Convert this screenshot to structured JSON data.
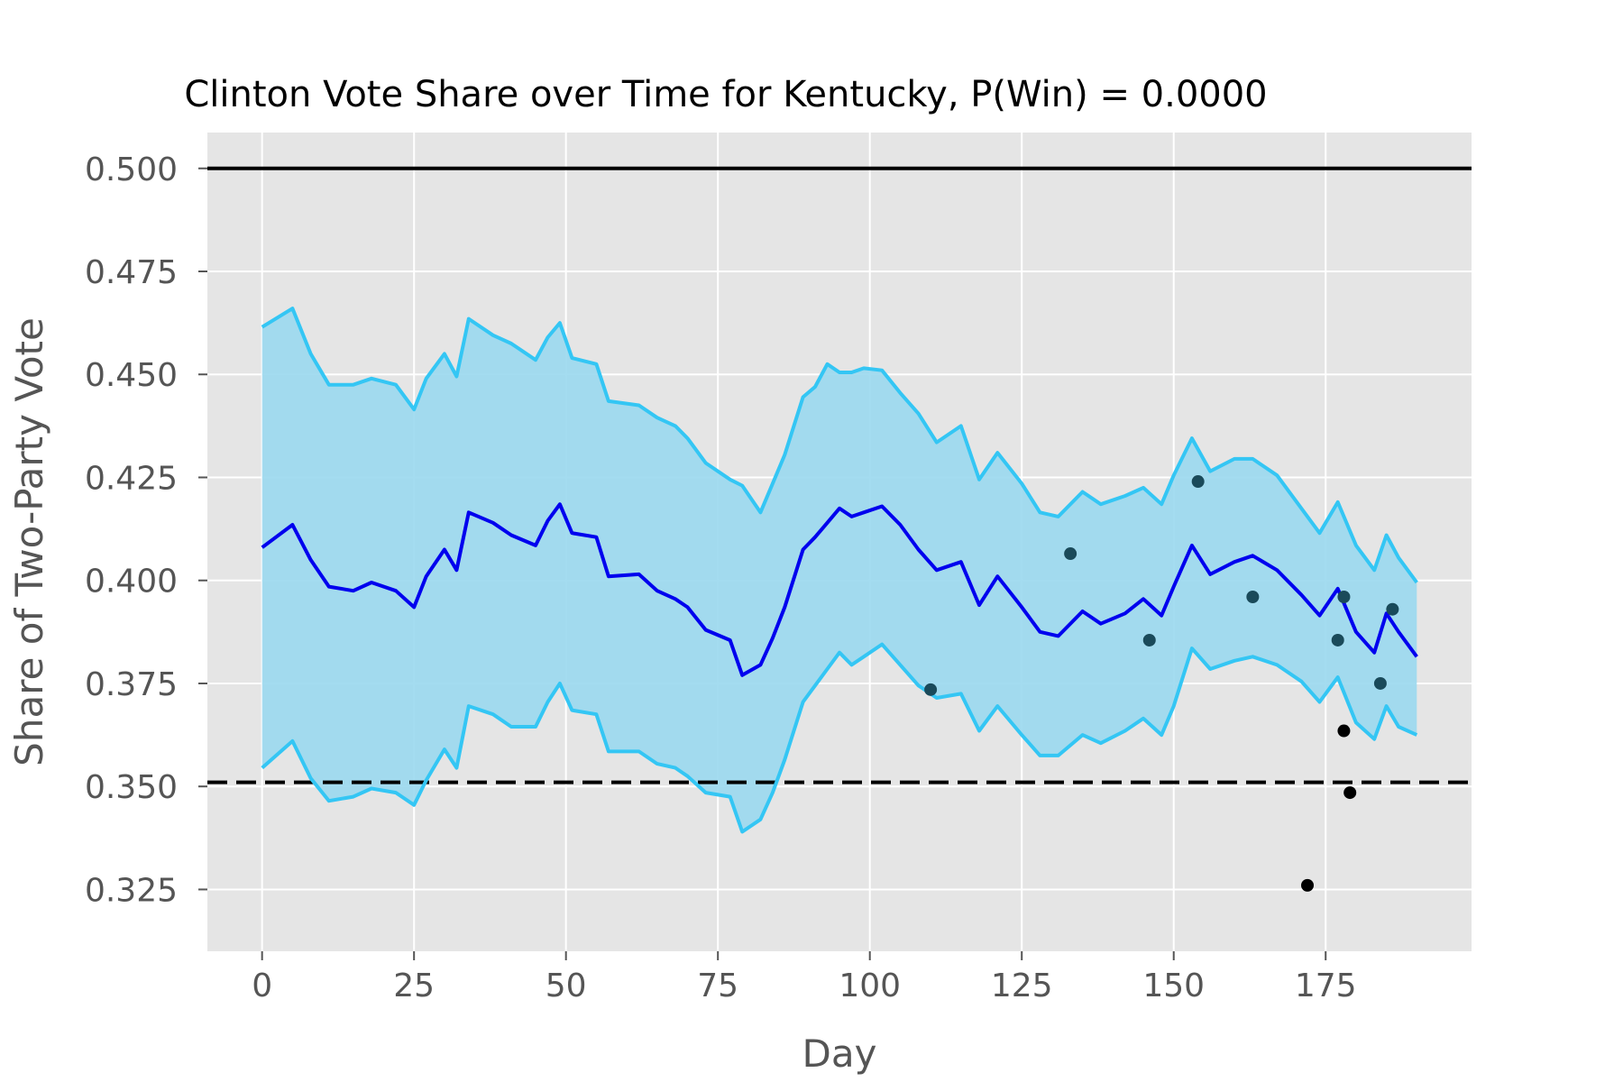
{
  "chart_data": {
    "type": "line",
    "title": "Clinton Vote Share over Time for Kentucky, P(Win) = 0.0000",
    "xlabel": "Day",
    "ylabel": "Share of Two-Party Vote",
    "xlim": [
      -9,
      199
    ],
    "ylim": [
      0.31,
      0.5087
    ],
    "xticks": [
      0,
      25,
      50,
      75,
      100,
      125,
      150,
      175
    ],
    "yticks": [
      0.325,
      0.35,
      0.375,
      0.4,
      0.425,
      0.45,
      0.475,
      0.5
    ],
    "ytick_labels": [
      "0.325",
      "0.350",
      "0.375",
      "0.400",
      "0.425",
      "0.450",
      "0.475",
      "0.500"
    ],
    "grid": true,
    "legend": "none",
    "reference_lines": [
      {
        "y": 0.5,
        "style": "solid",
        "color": "#000000"
      },
      {
        "y": 0.351,
        "style": "dashed",
        "color": "#000000"
      }
    ],
    "band_color": "#9ad8ee",
    "band_edge_color": "#34c6f4",
    "mean_color": "#0000ee",
    "x": [
      0,
      5,
      8,
      11,
      15,
      18,
      22,
      25,
      27,
      30,
      32,
      34,
      38,
      41,
      45,
      47,
      49,
      51,
      55,
      57,
      62,
      65,
      68,
      70,
      73,
      77,
      79,
      82,
      84,
      86,
      89,
      91,
      93,
      95,
      97,
      99,
      102,
      105,
      108,
      111,
      115,
      118,
      121,
      125,
      128,
      131,
      135,
      138,
      142,
      145,
      148,
      150,
      153,
      156,
      160,
      163,
      167,
      171,
      174,
      177,
      180,
      183,
      185,
      187,
      190
    ],
    "series": [
      {
        "name": "mean",
        "values": [
          0.408,
          0.4135,
          0.405,
          0.3985,
          0.3975,
          0.3995,
          0.3975,
          0.3935,
          0.401,
          0.4075,
          0.4025,
          0.4165,
          0.414,
          0.411,
          0.4085,
          0.4145,
          0.4185,
          0.4115,
          0.4105,
          0.401,
          0.4015,
          0.3975,
          0.3955,
          0.3935,
          0.388,
          0.3855,
          0.377,
          0.3795,
          0.386,
          0.3935,
          0.4075,
          0.4105,
          0.414,
          0.4175,
          0.4155,
          0.4165,
          0.418,
          0.4135,
          0.4075,
          0.4025,
          0.4045,
          0.394,
          0.401,
          0.3935,
          0.3875,
          0.3865,
          0.3925,
          0.3895,
          0.392,
          0.3955,
          0.3915,
          0.3985,
          0.4085,
          0.4015,
          0.4045,
          0.406,
          0.4025,
          0.3965,
          0.3915,
          0.398,
          0.3875,
          0.3825,
          0.392,
          0.3875,
          0.3815
        ]
      },
      {
        "name": "upper",
        "values": [
          0.4615,
          0.466,
          0.455,
          0.4475,
          0.4475,
          0.449,
          0.4475,
          0.4415,
          0.449,
          0.455,
          0.4495,
          0.4635,
          0.4595,
          0.4575,
          0.4535,
          0.459,
          0.4625,
          0.454,
          0.4525,
          0.4435,
          0.4425,
          0.4395,
          0.4375,
          0.4345,
          0.4285,
          0.4245,
          0.423,
          0.4165,
          0.4235,
          0.4305,
          0.4445,
          0.447,
          0.4525,
          0.4505,
          0.4505,
          0.4515,
          0.451,
          0.4455,
          0.4405,
          0.4335,
          0.4375,
          0.4245,
          0.431,
          0.4235,
          0.4165,
          0.4155,
          0.4215,
          0.4185,
          0.4205,
          0.4225,
          0.4185,
          0.4255,
          0.4345,
          0.4265,
          0.4295,
          0.4295,
          0.4255,
          0.4175,
          0.4115,
          0.419,
          0.4085,
          0.4025,
          0.411,
          0.4055,
          0.3995
        ]
      },
      {
        "name": "lower",
        "values": [
          0.3545,
          0.361,
          0.352,
          0.3465,
          0.3475,
          0.3495,
          0.3485,
          0.3455,
          0.3515,
          0.359,
          0.3545,
          0.3695,
          0.3675,
          0.3645,
          0.3645,
          0.3705,
          0.375,
          0.3685,
          0.3675,
          0.3585,
          0.3585,
          0.3555,
          0.3545,
          0.3525,
          0.3485,
          0.3475,
          0.339,
          0.342,
          0.3485,
          0.3565,
          0.3705,
          0.3745,
          0.3785,
          0.3825,
          0.3795,
          0.3815,
          0.3845,
          0.3795,
          0.3745,
          0.3715,
          0.3725,
          0.3635,
          0.3695,
          0.3625,
          0.3575,
          0.3575,
          0.3625,
          0.3605,
          0.3635,
          0.3665,
          0.3625,
          0.3695,
          0.3835,
          0.3785,
          0.3805,
          0.3815,
          0.3795,
          0.3755,
          0.3705,
          0.3765,
          0.3655,
          0.3615,
          0.3695,
          0.3645,
          0.3625
        ]
      }
    ],
    "polls": {
      "x": [
        110,
        133,
        146,
        154,
        163,
        172,
        177,
        178,
        178,
        179,
        184,
        186
      ],
      "y": [
        0.3735,
        0.4065,
        0.3855,
        0.424,
        0.396,
        0.326,
        0.3855,
        0.3635,
        0.396,
        0.3485,
        0.375,
        0.393
      ],
      "colors": [
        "#1a4a5a",
        "#1a4a5a",
        "#1a4a5a",
        "#1a4a5a",
        "#1a4a5a",
        "#000000",
        "#1a4a5a",
        "#000000",
        "#1a4a5a",
        "#000000",
        "#1a4a5a",
        "#1a4a5a"
      ]
    }
  }
}
